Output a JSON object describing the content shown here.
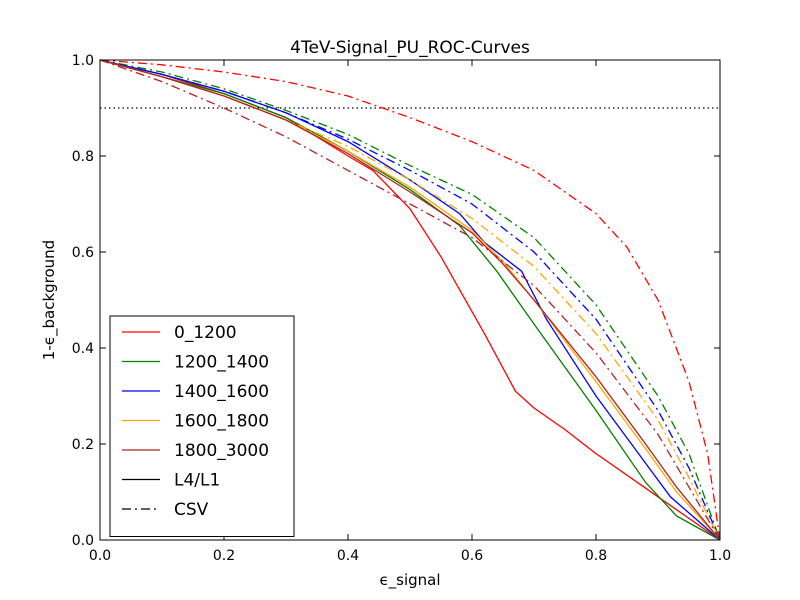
{
  "chart_data": {
    "type": "line",
    "title": "4TeV-Signal_PU_ROC-Curves",
    "xlabel": "ϵ_signal",
    "ylabel": "1-ϵ_background",
    "xlim": [
      0.0,
      1.0
    ],
    "ylim": [
      0.0,
      1.0
    ],
    "xticks": [
      "0.0",
      "0.2",
      "0.4",
      "0.6",
      "0.8",
      "1.0"
    ],
    "yticks": [
      "0.0",
      "0.2",
      "0.4",
      "0.6",
      "0.8",
      "1.0"
    ],
    "grid": false,
    "legend_position": "lower-left",
    "reference_line": {
      "y": 0.9,
      "style": "dotted",
      "color": "#000000"
    },
    "series": [
      {
        "name": "0_1200",
        "color": "#ff0000",
        "l4l1": [
          [
            0,
            1.0
          ],
          [
            0.1,
            0.97
          ],
          [
            0.2,
            0.93
          ],
          [
            0.3,
            0.88
          ],
          [
            0.35,
            0.84
          ],
          [
            0.4,
            0.8
          ],
          [
            0.44,
            0.77
          ],
          [
            0.5,
            0.69
          ],
          [
            0.55,
            0.59
          ],
          [
            0.62,
            0.43
          ],
          [
            0.67,
            0.31
          ],
          [
            0.7,
            0.275
          ],
          [
            0.75,
            0.23
          ],
          [
            0.8,
            0.18
          ],
          [
            0.9,
            0.09
          ],
          [
            1.0,
            0.0
          ]
        ],
        "csv": [
          [
            0,
            1.0
          ],
          [
            0.1,
            0.99
          ],
          [
            0.2,
            0.975
          ],
          [
            0.3,
            0.955
          ],
          [
            0.4,
            0.925
          ],
          [
            0.5,
            0.88
          ],
          [
            0.6,
            0.83
          ],
          [
            0.7,
            0.77
          ],
          [
            0.8,
            0.68
          ],
          [
            0.85,
            0.61
          ],
          [
            0.9,
            0.5
          ],
          [
            0.95,
            0.33
          ],
          [
            0.98,
            0.18
          ],
          [
            1.0,
            0.0
          ]
        ]
      },
      {
        "name": "1200_1400",
        "color": "#008000",
        "l4l1": [
          [
            0,
            1.0
          ],
          [
            0.1,
            0.965
          ],
          [
            0.2,
            0.93
          ],
          [
            0.3,
            0.88
          ],
          [
            0.4,
            0.81
          ],
          [
            0.5,
            0.73
          ],
          [
            0.58,
            0.655
          ],
          [
            0.64,
            0.56
          ],
          [
            0.7,
            0.45
          ],
          [
            0.8,
            0.27
          ],
          [
            0.88,
            0.12
          ],
          [
            0.93,
            0.05
          ],
          [
            1.0,
            0.0
          ]
        ],
        "csv": [
          [
            0,
            1.0
          ],
          [
            0.1,
            0.975
          ],
          [
            0.2,
            0.94
          ],
          [
            0.3,
            0.895
          ],
          [
            0.4,
            0.845
          ],
          [
            0.5,
            0.78
          ],
          [
            0.6,
            0.72
          ],
          [
            0.7,
            0.63
          ],
          [
            0.8,
            0.49
          ],
          [
            0.9,
            0.3
          ],
          [
            0.95,
            0.18
          ],
          [
            1.0,
            0.0
          ]
        ]
      },
      {
        "name": "1400_1600",
        "color": "#0000ff",
        "l4l1": [
          [
            0,
            1.0
          ],
          [
            0.1,
            0.97
          ],
          [
            0.2,
            0.935
          ],
          [
            0.3,
            0.89
          ],
          [
            0.4,
            0.83
          ],
          [
            0.5,
            0.75
          ],
          [
            0.58,
            0.68
          ],
          [
            0.62,
            0.62
          ],
          [
            0.68,
            0.56
          ],
          [
            0.72,
            0.46
          ],
          [
            0.8,
            0.3
          ],
          [
            0.88,
            0.16
          ],
          [
            0.92,
            0.09
          ],
          [
            1.0,
            0.0
          ]
        ],
        "csv": [
          [
            0,
            1.0
          ],
          [
            0.1,
            0.97
          ],
          [
            0.2,
            0.935
          ],
          [
            0.3,
            0.89
          ],
          [
            0.4,
            0.835
          ],
          [
            0.5,
            0.77
          ],
          [
            0.6,
            0.7
          ],
          [
            0.7,
            0.6
          ],
          [
            0.8,
            0.46
          ],
          [
            0.9,
            0.27
          ],
          [
            0.95,
            0.15
          ],
          [
            1.0,
            0.0
          ]
        ]
      },
      {
        "name": "1600_1800",
        "color": "#ffa500",
        "l4l1": [
          [
            0,
            1.0
          ],
          [
            0.1,
            0.965
          ],
          [
            0.2,
            0.925
          ],
          [
            0.3,
            0.875
          ],
          [
            0.4,
            0.81
          ],
          [
            0.5,
            0.735
          ],
          [
            0.6,
            0.645
          ],
          [
            0.65,
            0.58
          ],
          [
            0.7,
            0.5
          ],
          [
            0.8,
            0.33
          ],
          [
            0.88,
            0.19
          ],
          [
            0.93,
            0.1
          ],
          [
            1.0,
            0.0
          ]
        ],
        "csv": [
          [
            0,
            1.0
          ],
          [
            0.1,
            0.965
          ],
          [
            0.2,
            0.925
          ],
          [
            0.3,
            0.875
          ],
          [
            0.4,
            0.82
          ],
          [
            0.5,
            0.75
          ],
          [
            0.6,
            0.67
          ],
          [
            0.7,
            0.57
          ],
          [
            0.8,
            0.43
          ],
          [
            0.9,
            0.25
          ],
          [
            0.95,
            0.13
          ],
          [
            1.0,
            0.0
          ]
        ]
      },
      {
        "name": "1800_3000",
        "color": "#b22222",
        "l4l1": [
          [
            0,
            1.0
          ],
          [
            0.1,
            0.965
          ],
          [
            0.2,
            0.925
          ],
          [
            0.3,
            0.875
          ],
          [
            0.4,
            0.805
          ],
          [
            0.5,
            0.725
          ],
          [
            0.6,
            0.64
          ],
          [
            0.65,
            0.575
          ],
          [
            0.7,
            0.5
          ],
          [
            0.8,
            0.34
          ],
          [
            0.88,
            0.2
          ],
          [
            0.93,
            0.11
          ],
          [
            1.0,
            0.0
          ]
        ],
        "csv": [
          [
            0,
            1.0
          ],
          [
            0.1,
            0.955
          ],
          [
            0.2,
            0.9
          ],
          [
            0.3,
            0.84
          ],
          [
            0.4,
            0.77
          ],
          [
            0.5,
            0.7
          ],
          [
            0.6,
            0.63
          ],
          [
            0.7,
            0.53
          ],
          [
            0.8,
            0.39
          ],
          [
            0.9,
            0.22
          ],
          [
            0.95,
            0.11
          ],
          [
            1.0,
            0.0
          ]
        ]
      }
    ],
    "legend": [
      {
        "label": "0_1200",
        "color": "#ff0000",
        "style": "solid"
      },
      {
        "label": "1200_1400",
        "color": "#008000",
        "style": "solid"
      },
      {
        "label": "1400_1600",
        "color": "#0000ff",
        "style": "solid"
      },
      {
        "label": "1600_1800",
        "color": "#ffa500",
        "style": "solid"
      },
      {
        "label": "1800_3000",
        "color": "#b22222",
        "style": "solid"
      },
      {
        "label": "L4/L1",
        "color": "#000000",
        "style": "solid"
      },
      {
        "label": "CSV",
        "color": "#000000",
        "style": "dashdot"
      }
    ]
  }
}
